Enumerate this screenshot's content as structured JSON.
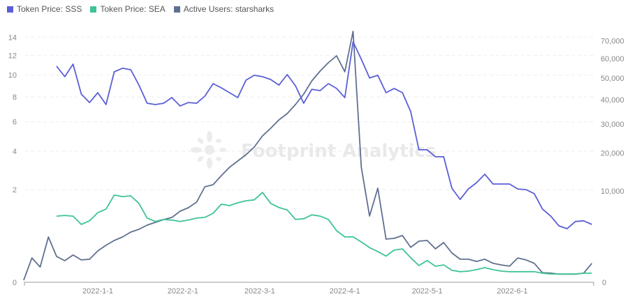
{
  "legend": [
    {
      "label": "Token Price: SSS",
      "color": "#5b5fd6"
    },
    {
      "label": "Token Price: SEA",
      "color": "#3ec495"
    },
    {
      "label": "Active Users: starsharks",
      "color": "#607090"
    }
  ],
  "watermark": "Footprint Analytics",
  "chart_data": {
    "type": "line",
    "title": "",
    "legend_position": "top-left",
    "grid": true,
    "x_ticks": [
      "2022-1-1",
      "2022-2-1",
      "2022-3-1",
      "2022-4-1",
      "2022-5-1",
      "2022-6-1"
    ],
    "x_tick_dates": [
      "2022-01-01",
      "2022-02-01",
      "2022-03-01",
      "2022-04-01",
      "2022-05-01",
      "2022-06-01"
    ],
    "y_left": {
      "scale": "sqrt",
      "range": [
        0,
        14.5
      ],
      "ticks": [
        0,
        2,
        4,
        6,
        8,
        10,
        12,
        14
      ],
      "tick_labels": [
        "0",
        "2",
        "4",
        "6",
        "8",
        "10",
        "12",
        "14"
      ]
    },
    "y_right": {
      "scale": "sqrt",
      "range": [
        0,
        75000
      ],
      "ticks": [
        0,
        10000,
        20000,
        30000,
        40000,
        50000,
        60000,
        70000
      ],
      "tick_labels": [
        "0",
        "10,000",
        "20,000",
        "30,000",
        "40,000",
        "50,000",
        "60,000",
        "70,000"
      ]
    },
    "x": [
      "2021-12-05",
      "2021-12-08",
      "2021-12-11",
      "2021-12-14",
      "2021-12-17",
      "2021-12-20",
      "2021-12-23",
      "2021-12-26",
      "2021-12-29",
      "2022-01-01",
      "2022-01-04",
      "2022-01-07",
      "2022-01-10",
      "2022-01-13",
      "2022-01-16",
      "2022-01-19",
      "2022-01-22",
      "2022-01-25",
      "2022-01-28",
      "2022-01-31",
      "2022-02-03",
      "2022-02-06",
      "2022-02-09",
      "2022-02-12",
      "2022-02-15",
      "2022-02-18",
      "2022-02-21",
      "2022-02-24",
      "2022-02-27",
      "2022-03-02",
      "2022-03-05",
      "2022-03-08",
      "2022-03-11",
      "2022-03-14",
      "2022-03-17",
      "2022-03-20",
      "2022-03-23",
      "2022-03-26",
      "2022-03-29",
      "2022-04-01",
      "2022-04-04",
      "2022-04-07",
      "2022-04-10",
      "2022-04-13",
      "2022-04-16",
      "2022-04-19",
      "2022-04-22",
      "2022-04-25",
      "2022-04-28",
      "2022-05-01",
      "2022-05-04",
      "2022-05-07",
      "2022-05-10",
      "2022-05-13",
      "2022-05-16",
      "2022-05-19",
      "2022-05-22",
      "2022-05-25",
      "2022-05-28",
      "2022-05-31",
      "2022-06-03",
      "2022-06-06",
      "2022-06-09",
      "2022-06-12",
      "2022-06-15",
      "2022-06-18",
      "2022-06-21",
      "2022-06-24",
      "2022-06-27",
      "2022-06-30"
    ],
    "series": [
      {
        "name": "Token Price: SSS",
        "axis": "left",
        "color": "#5b5fd6",
        "values": [
          null,
          null,
          null,
          null,
          10.88,
          9.85,
          11.09,
          8.25,
          7.53,
          8.37,
          7.36,
          10.32,
          10.67,
          10.53,
          9.06,
          7.47,
          7.36,
          7.47,
          7.95,
          7.24,
          7.53,
          7.47,
          8.07,
          9.19,
          8.81,
          8.37,
          7.95,
          9.52,
          9.98,
          9.85,
          9.58,
          9.06,
          10.05,
          9.0,
          7.47,
          8.68,
          8.56,
          9.19,
          8.75,
          7.95,
          13.47,
          11.59,
          9.72,
          9.98,
          8.37,
          8.75,
          8.37,
          6.79,
          4.09,
          4.09,
          3.67,
          3.67,
          2.06,
          1.6,
          2.03,
          2.31,
          2.72,
          2.25,
          2.25,
          2.25,
          2.03,
          2.0,
          1.83,
          1.25,
          1.02,
          0.74,
          0.67,
          0.86,
          0.88,
          0.78
        ]
      },
      {
        "name": "Token Price: SEA",
        "axis": "left",
        "color": "#3ec495",
        "values": [
          null,
          null,
          null,
          null,
          1.02,
          1.04,
          1.02,
          0.78,
          0.88,
          1.13,
          1.25,
          1.77,
          1.71,
          1.74,
          1.45,
          0.96,
          0.86,
          0.92,
          0.9,
          0.86,
          0.9,
          0.96,
          0.98,
          1.11,
          1.42,
          1.37,
          1.47,
          1.55,
          1.58,
          1.88,
          1.45,
          1.3,
          1.22,
          0.92,
          0.94,
          1.06,
          1.02,
          0.92,
          0.62,
          0.48,
          0.48,
          0.38,
          0.28,
          0.22,
          0.16,
          0.24,
          0.26,
          0.14,
          0.065,
          0.11,
          0.06,
          0.07,
          0.033,
          0.026,
          0.029,
          0.037,
          0.05,
          0.037,
          0.029,
          0.026,
          0.026,
          0.026,
          0.026,
          0.019,
          0.016,
          0.016,
          0.016,
          0.016,
          0.019,
          0.019
        ]
      },
      {
        "name": "Active Users: starsharks",
        "axis": "right",
        "color": "#607090",
        "values": [
          5,
          710,
          280,
          2460,
          800,
          560,
          890,
          600,
          640,
          1180,
          1640,
          2100,
          2460,
          3020,
          3370,
          3920,
          4310,
          4720,
          5040,
          6060,
          6670,
          7710,
          10940,
          11420,
          13640,
          15870,
          17640,
          19520,
          21930,
          25700,
          28460,
          31640,
          34130,
          37890,
          42480,
          48670,
          53500,
          57820,
          61550,
          53140,
          75520,
          15870,
          5260,
          10620,
          2240,
          2310,
          2620,
          1460,
          2030,
          2100,
          1340,
          1890,
          1030,
          640,
          640,
          520,
          640,
          430,
          360,
          310,
          710,
          600,
          430,
          110,
          100,
          80,
          80,
          80,
          100,
          430
        ]
      }
    ]
  }
}
